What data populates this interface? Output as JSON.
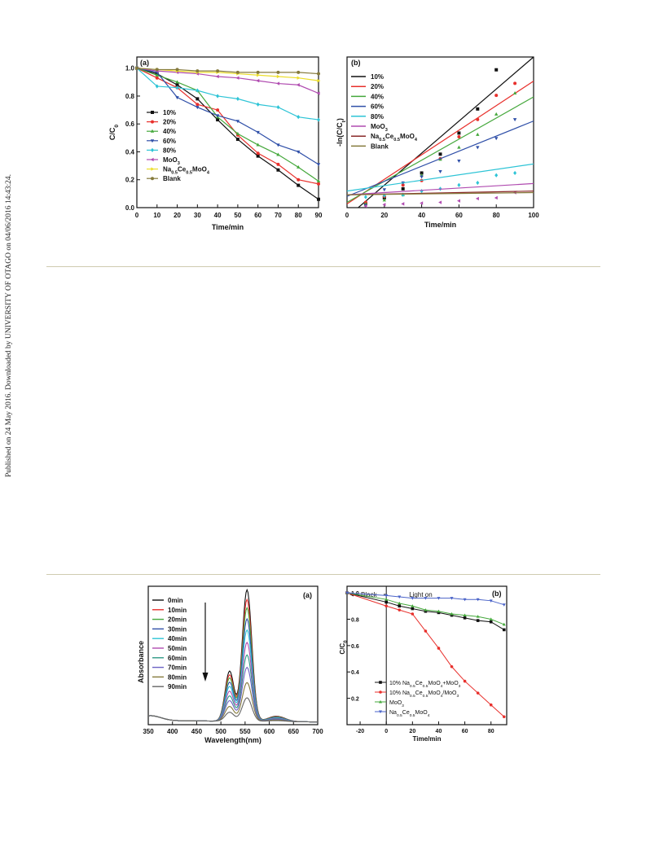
{
  "sidebar_text": "Published on 24 May 2016. Downloaded by UNIVERSITY OF OTAGO on 04/06/2016 14:43:24.",
  "chart_data": [
    {
      "type": "line",
      "panel_label": "(a)",
      "xlabel": "Time/min",
      "ylabel": "C/C",
      "ylabel_sub": "0",
      "xlim": [
        0,
        90
      ],
      "ylim": [
        0,
        1.08
      ],
      "xticks": [
        0,
        10,
        20,
        30,
        40,
        50,
        60,
        70,
        80,
        90
      ],
      "yticks": [
        0.0,
        0.2,
        0.4,
        0.6,
        0.8,
        1.0
      ],
      "x": [
        0,
        10,
        20,
        30,
        40,
        50,
        60,
        70,
        80,
        90
      ],
      "series": [
        {
          "name": "10%",
          "label_main": "10%",
          "label_sub": "",
          "label_tail": "",
          "color": "#111111",
          "marker": "square",
          "values": [
            1.0,
            0.96,
            0.88,
            0.78,
            0.63,
            0.49,
            0.37,
            0.27,
            0.16,
            0.06
          ]
        },
        {
          "name": "20%",
          "label_main": "20%",
          "label_sub": "",
          "label_tail": "",
          "color": "#e8302c",
          "marker": "circle",
          "values": [
            1.0,
            0.93,
            0.86,
            0.74,
            0.7,
            0.52,
            0.39,
            0.31,
            0.2,
            0.17
          ]
        },
        {
          "name": "40%",
          "label_main": "40%",
          "label_sub": "",
          "label_tail": "",
          "color": "#45a83c",
          "marker": "triangle-up",
          "values": [
            1.0,
            0.95,
            0.9,
            0.84,
            0.65,
            0.53,
            0.45,
            0.38,
            0.29,
            0.19
          ]
        },
        {
          "name": "60%",
          "label_main": "60%",
          "label_sub": "",
          "label_tail": "",
          "color": "#2f4fa8",
          "marker": "triangle-down",
          "values": [
            1.0,
            0.97,
            0.79,
            0.72,
            0.66,
            0.62,
            0.54,
            0.45,
            0.4,
            0.31
          ]
        },
        {
          "name": "80%",
          "label_main": "80%",
          "label_sub": "",
          "label_tail": "",
          "color": "#2ec4d6",
          "marker": "diamond",
          "values": [
            1.0,
            0.87,
            0.86,
            0.84,
            0.8,
            0.78,
            0.74,
            0.72,
            0.65,
            0.63
          ]
        },
        {
          "name": "MoO3",
          "label_main": "MoO",
          "label_sub": "3",
          "label_tail": "",
          "color": "#b04bb0",
          "marker": "triangle-left",
          "values": [
            1.0,
            0.98,
            0.97,
            0.96,
            0.94,
            0.93,
            0.91,
            0.89,
            0.88,
            0.82
          ]
        },
        {
          "name": "Na0.5Ce0.5MoO4",
          "label_main": "Na",
          "label_sub": "0.5",
          "label_tail": "Ce|0.5|MoO|4",
          "color": "#ecde2a",
          "marker": "triangle-right",
          "values": [
            1.0,
            0.99,
            0.98,
            0.97,
            0.97,
            0.96,
            0.95,
            0.94,
            0.93,
            0.91
          ]
        },
        {
          "name": "Blank",
          "label_main": "Blank",
          "label_sub": "",
          "label_tail": "",
          "color": "#857a3c",
          "marker": "circle",
          "values": [
            1.0,
            0.99,
            0.99,
            0.98,
            0.98,
            0.97,
            0.97,
            0.97,
            0.97,
            0.96
          ]
        }
      ]
    },
    {
      "type": "scatter",
      "panel_label": "(b)",
      "xlabel": "Time/min",
      "ylabel": "-ln(C/C",
      "ylabel_sub": "t",
      "ylabel_tail": ")",
      "xlim": [
        0,
        100
      ],
      "ylim": [
        0,
        2.0
      ],
      "xticks": [
        0,
        20,
        40,
        60,
        80,
        100
      ],
      "points_x": [
        10,
        20,
        30,
        40,
        50,
        60,
        70,
        80,
        90
      ],
      "series": [
        {
          "name": "10%",
          "label_main": "10%",
          "label_sub": "",
          "label_tail": "",
          "color": "#111111",
          "marker": "square",
          "line": [
            [
              6,
              0
            ],
            [
              100,
              2.0
            ]
          ],
          "values": [
            0.05,
            0.13,
            0.25,
            0.46,
            0.71,
            0.99,
            1.31,
            1.83,
            null
          ]
        },
        {
          "name": "20%",
          "label_main": "20%",
          "label_sub": "",
          "label_tail": "",
          "color": "#e8302c",
          "marker": "circle",
          "line": [
            [
              0,
              0.05
            ],
            [
              100,
              1.68
            ]
          ],
          "values": [
            0.07,
            0.15,
            0.3,
            0.36,
            0.65,
            0.94,
            1.17,
            1.49,
            1.65
          ]
        },
        {
          "name": "40%",
          "label_main": "40%",
          "label_sub": "",
          "label_tail": "",
          "color": "#45a83c",
          "marker": "triangle-up",
          "line": [
            [
              0,
              0.07
            ],
            [
              100,
              1.47
            ]
          ],
          "values": [
            0.05,
            0.1,
            0.17,
            0.43,
            0.64,
            0.8,
            0.97,
            1.24,
            1.52
          ]
        },
        {
          "name": "60%",
          "label_main": "60%",
          "label_sub": "",
          "label_tail": "",
          "color": "#2f4fa8",
          "marker": "triangle-down",
          "line": [
            [
              0,
              0.15
            ],
            [
              100,
              1.15
            ]
          ],
          "values": [
            0.03,
            0.24,
            0.33,
            0.41,
            0.48,
            0.62,
            0.8,
            0.92,
            1.17
          ]
        },
        {
          "name": "80%",
          "label_main": "80%",
          "label_sub": "",
          "label_tail": "",
          "color": "#2ec4d6",
          "marker": "diamond",
          "line": [
            [
              0,
              0.22
            ],
            [
              100,
              0.58
            ]
          ],
          "values": [
            0.14,
            0.16,
            0.17,
            0.22,
            0.25,
            0.3,
            0.33,
            0.43,
            0.46
          ]
        },
        {
          "name": "MoO3",
          "label_main": "MoO",
          "label_sub": "3",
          "label_tail": "",
          "color": "#b04bb0",
          "marker": "triangle-left",
          "line": [
            [
              0,
              0.17
            ],
            [
              100,
              0.32
            ]
          ],
          "values": [
            0.02,
            0.04,
            0.05,
            0.06,
            0.07,
            0.09,
            0.12,
            0.13,
            0.2
          ]
        },
        {
          "name": "Na0.5Ce0.5MoO4",
          "label_main": "Na",
          "label_sub": "0.5",
          "label_tail": "Ce|0.5|MoO|4",
          "color": "#8a2a2a",
          "marker": "none",
          "line": [
            [
              0,
              0.17
            ],
            [
              100,
              0.22
            ]
          ],
          "values": [
            null,
            null,
            null,
            null,
            null,
            null,
            null,
            null,
            null
          ]
        },
        {
          "name": "Blank",
          "label_main": "Blank",
          "label_sub": "",
          "label_tail": "",
          "color": "#857a3c",
          "marker": "none",
          "line": [
            [
              0,
              0.17
            ],
            [
              100,
              0.2
            ]
          ],
          "values": [
            null,
            null,
            null,
            null,
            null,
            null,
            null,
            null,
            null
          ]
        }
      ]
    },
    {
      "type": "line",
      "panel_label": "(a)",
      "xlabel": "Wavelength(nm)",
      "ylabel": "Absorbance",
      "xlim": [
        350,
        700
      ],
      "ylim": [
        0,
        1.0
      ],
      "xticks": [
        350,
        400,
        450,
        500,
        550,
        600,
        650,
        700
      ],
      "peak_x": 554,
      "shoulder_x": 518,
      "series": [
        {
          "name": "0min",
          "color": "#111111",
          "peak": 0.95
        },
        {
          "name": "10min",
          "color": "#e8302c",
          "peak": 0.88
        },
        {
          "name": "20min",
          "color": "#45a83c",
          "peak": 0.82
        },
        {
          "name": "30min",
          "color": "#2f4fa8",
          "peak": 0.74
        },
        {
          "name": "40min",
          "color": "#2ec4d6",
          "peak": 0.66
        },
        {
          "name": "50min",
          "color": "#b04bb0",
          "peak": 0.57
        },
        {
          "name": "60min",
          "color": "#2f9a86",
          "peak": 0.48
        },
        {
          "name": "70min",
          "color": "#6c62c4",
          "peak": 0.39
        },
        {
          "name": "80min",
          "color": "#857a3c",
          "peak": 0.28
        },
        {
          "name": "90min",
          "color": "#666666",
          "peak": 0.17
        }
      ]
    },
    {
      "type": "line",
      "panel_label": "(b)",
      "xlabel": "Time/min",
      "ylabel": "C/C",
      "ylabel_sub": "0",
      "xlim": [
        -30,
        92
      ],
      "ylim": [
        0,
        1.05
      ],
      "xticks": [
        -20,
        0,
        20,
        40,
        60,
        80
      ],
      "yticks": [
        0.2,
        0.4,
        0.6,
        0.8,
        1.0
      ],
      "annot_dark": "Black",
      "annot_light": "Light on",
      "x": [
        -30,
        0,
        10,
        20,
        30,
        40,
        50,
        60,
        70,
        80,
        90
      ],
      "series": [
        {
          "name": "10% Na0.5Ce0.5MoO4+MoO3",
          "label_main": "10% Na",
          "label_sub": "0.5",
          "label_tail": "Ce|0.5|MoO|4|+MoO|3",
          "color": "#111111",
          "marker": "square",
          "values": [
            1.0,
            0.93,
            0.9,
            0.88,
            0.86,
            0.85,
            0.83,
            0.81,
            0.79,
            0.78,
            0.72
          ]
        },
        {
          "name": "10% Na0.5Ce0.5MoO4/MoO3",
          "label_main": "10% Na",
          "label_sub": "0.5",
          "label_tail": "Ce|0.5|MoO|4|/MoO|3",
          "color": "#e8302c",
          "marker": "circle",
          "values": [
            1.0,
            0.9,
            0.87,
            0.84,
            0.71,
            0.58,
            0.44,
            0.33,
            0.24,
            0.15,
            0.06
          ]
        },
        {
          "name": "MoO3",
          "label_main": "MoO",
          "label_sub": "3",
          "label_tail": "",
          "color": "#45a83c",
          "marker": "triangle-up",
          "values": [
            1.0,
            0.95,
            0.92,
            0.9,
            0.87,
            0.86,
            0.84,
            0.83,
            0.82,
            0.8,
            0.76
          ]
        },
        {
          "name": "Na0.5Ce0.5MoO4",
          "label_main": "Na",
          "label_sub": "0.5",
          "label_tail": "Ce|0.5|MoO|4",
          "color": "#4a63c8",
          "marker": "triangle-down",
          "values": [
            1.0,
            0.98,
            0.97,
            0.96,
            0.96,
            0.96,
            0.96,
            0.95,
            0.95,
            0.94,
            0.91
          ]
        }
      ]
    }
  ]
}
